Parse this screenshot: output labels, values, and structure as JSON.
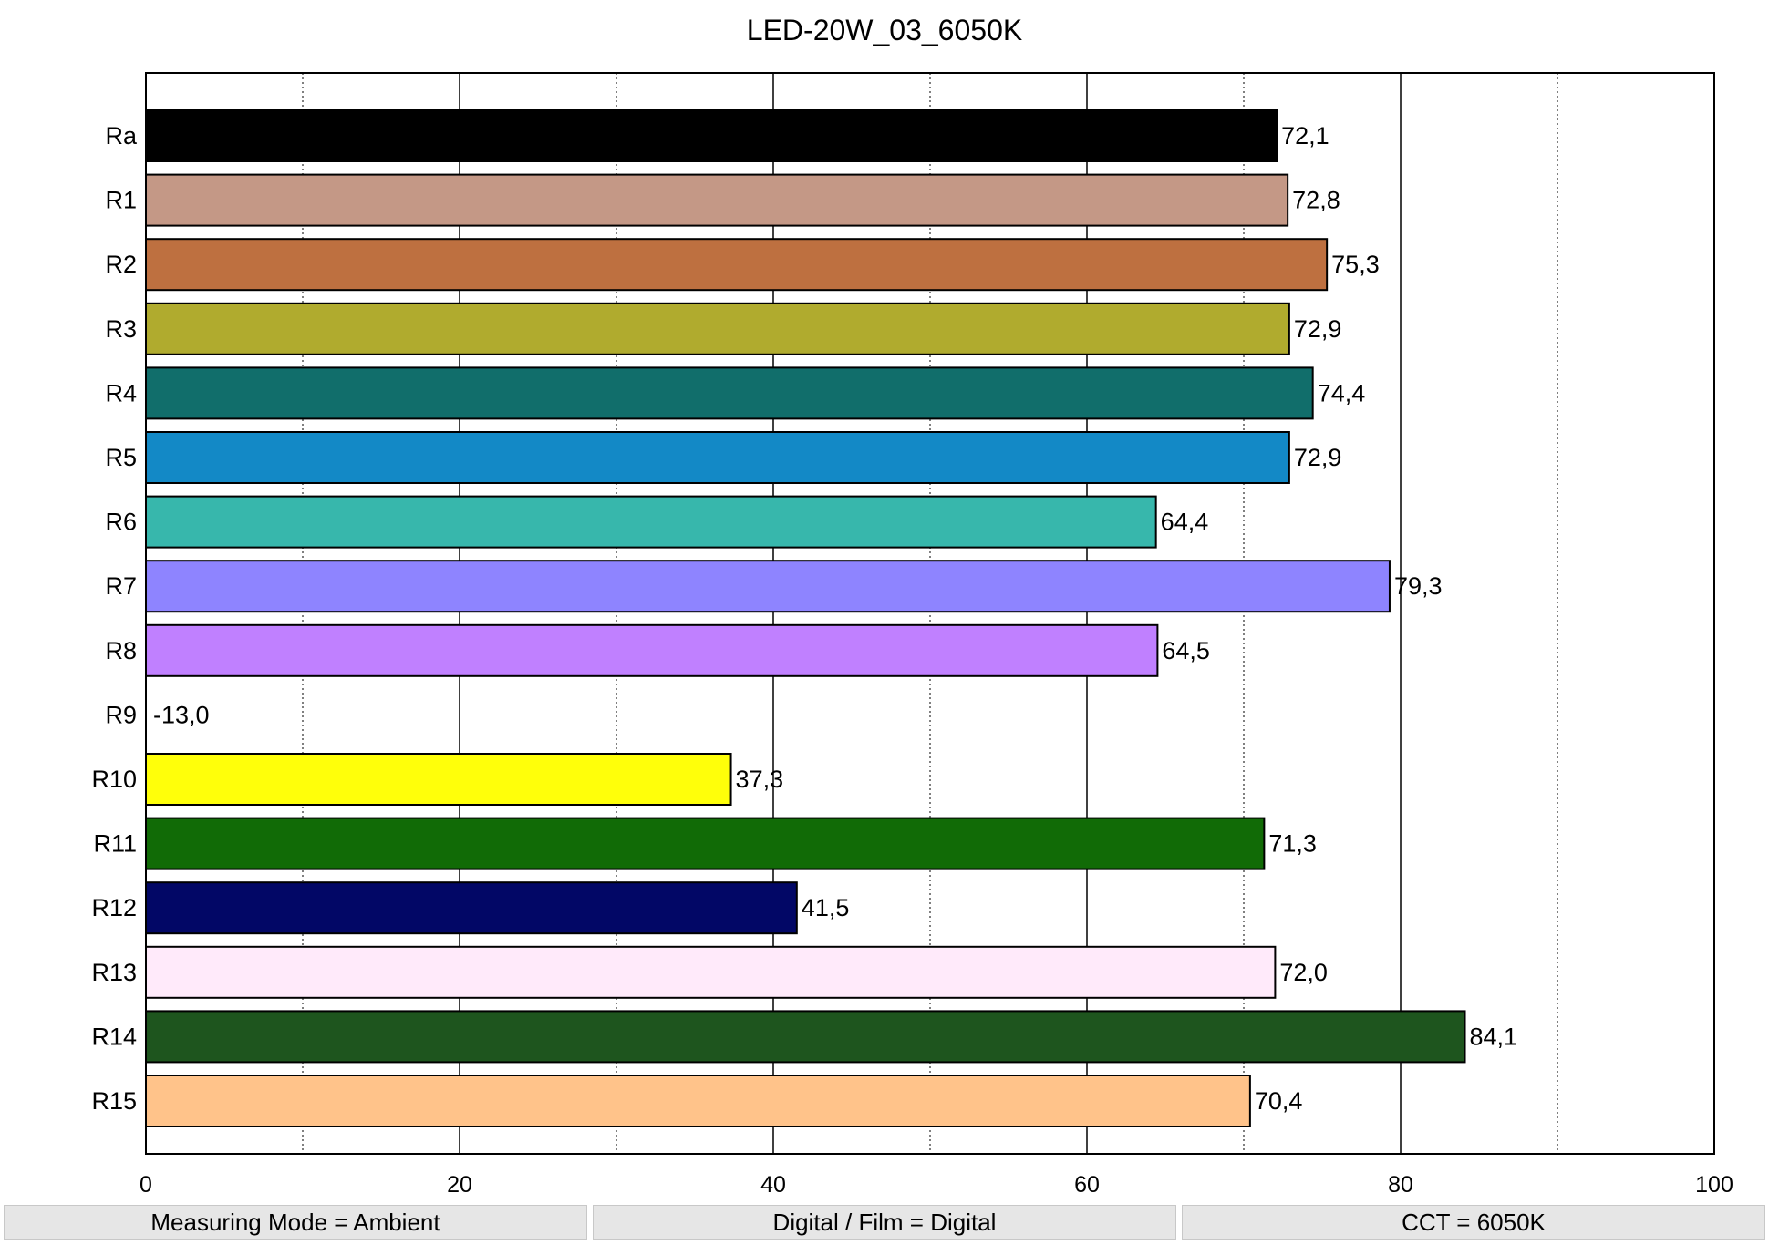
{
  "chart_data": {
    "type": "bar",
    "orientation": "horizontal",
    "title": "LED-20W_03_6050K",
    "xlabel": "",
    "ylabel": "",
    "xlim": [
      0,
      100
    ],
    "x_ticks": [
      0,
      20,
      40,
      60,
      80,
      100
    ],
    "x_tick_labels": [
      "0",
      "20",
      "40",
      "60",
      "80",
      "100"
    ],
    "minor_gridlines": [
      10,
      30,
      50,
      70,
      90
    ],
    "grid": true,
    "legend": "none",
    "categories": [
      "Ra",
      "R1",
      "R2",
      "R3",
      "R4",
      "R5",
      "R6",
      "R7",
      "R8",
      "R9",
      "R10",
      "R11",
      "R12",
      "R13",
      "R14",
      "R15"
    ],
    "values": [
      72.1,
      72.8,
      75.3,
      72.9,
      74.4,
      72.9,
      64.4,
      79.3,
      64.5,
      -13.0,
      37.3,
      71.3,
      41.5,
      72.0,
      84.1,
      70.4
    ],
    "value_labels": [
      "72,1",
      "72,8",
      "75,3",
      "72,9",
      "74,4",
      "72,9",
      "64,4",
      "79,3",
      "64,5",
      "-13,0",
      "37,3",
      "71,3",
      "41,5",
      "72,0",
      "84,1",
      "70,4"
    ],
    "colors": [
      "#000000",
      "#c49886",
      "#be7040",
      "#b0ab2e",
      "#116e6b",
      "#1389c6",
      "#37b7ac",
      "#8e84ff",
      "#c080ff",
      "#ff2a2a",
      "#ffff0a",
      "#116b06",
      "#020766",
      "#ffeafa",
      "#1e551e",
      "#ffc38a"
    ]
  },
  "status_bar": {
    "measuring_mode": "Measuring Mode = Ambient",
    "digital_film": "Digital / Film = Digital",
    "cct": "CCT = 6050K"
  }
}
